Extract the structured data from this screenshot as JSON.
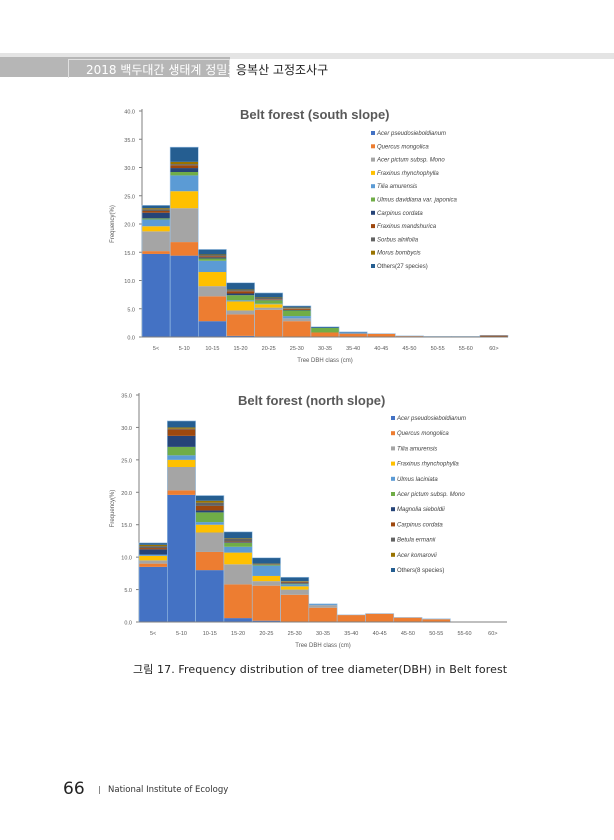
{
  "header": {
    "report_title": "2018 백두대간 생태계 정밀조사",
    "section_title": "응복산 고정조사구"
  },
  "caption": "그림 17. Frequency distribution of tree diameter(DBH) in Belt forest",
  "footer": {
    "page_number": "66",
    "institution": "National Institute of Ecology"
  },
  "chart_data": [
    {
      "type": "bar",
      "stacked": true,
      "title": "Belt forest (south slope)",
      "xlabel": "Tree DBH class (cm)",
      "ylabel": "Frequency(%)",
      "ylim": [
        0,
        40
      ],
      "yticks": [
        "0.0",
        "5.0",
        "10.0",
        "15.0",
        "20.0",
        "25.0",
        "30.0",
        "35.0",
        "40.0"
      ],
      "legend_position": "right",
      "categories": [
        "5<",
        "5-10",
        "10-15",
        "15-20",
        "20-25",
        "25-30",
        "30-35",
        "35-40",
        "40-45",
        "45-50",
        "50-55",
        "55-60",
        "60>"
      ],
      "series": [
        {
          "name": "Acer pseudosieboldianum",
          "color": "#4472c4",
          "values": [
            14.7,
            14.4,
            2.8,
            0.2,
            0.1,
            0,
            0,
            0,
            0,
            0,
            0,
            0,
            0
          ]
        },
        {
          "name": "Quercus mongolica",
          "color": "#ed7d31",
          "values": [
            0.5,
            2.4,
            4.4,
            3.8,
            4.7,
            2.8,
            0.8,
            0.6,
            0.6,
            0.2,
            0,
            0,
            0
          ]
        },
        {
          "name": "Acer pictum subsp. Mono",
          "color": "#a5a5a5",
          "values": [
            3.5,
            6.0,
            1.8,
            0.7,
            0.4,
            0.5,
            0,
            0,
            0,
            0,
            0.1,
            0.1,
            0
          ]
        },
        {
          "name": "Fraxinus rhynchophylla",
          "color": "#ffc000",
          "values": [
            0.9,
            3.0,
            2.5,
            1.6,
            0.6,
            0,
            0,
            0,
            0,
            0,
            0,
            0,
            0
          ]
        },
        {
          "name": "Tilia amurensis",
          "color": "#5b9bd5",
          "values": [
            1.2,
            2.8,
            2.0,
            0.2,
            0.1,
            0.4,
            0,
            0.2,
            0,
            0,
            0,
            0,
            0
          ]
        },
        {
          "name": "Ulmus davidiana var. japonica",
          "color": "#70ad47",
          "values": [
            0.2,
            0.6,
            0.4,
            0.9,
            0.6,
            1.0,
            0.8,
            0,
            0,
            0,
            0,
            0,
            0
          ]
        },
        {
          "name": "Carpinus cordata",
          "color": "#264478",
          "values": [
            1.0,
            0.7,
            0.2,
            0.3,
            0.1,
            0.1,
            0,
            0,
            0,
            0,
            0,
            0,
            0
          ]
        },
        {
          "name": "Fraxinus mandshurica",
          "color": "#9e480e",
          "values": [
            0.3,
            0.5,
            0.2,
            0.4,
            0.1,
            0.2,
            0,
            0,
            0,
            0,
            0,
            0,
            0.3
          ]
        },
        {
          "name": "Sorbus alnifolia",
          "color": "#636363",
          "values": [
            0.3,
            0.2,
            0.2,
            0.2,
            0.2,
            0.1,
            0,
            0,
            0,
            0,
            0,
            0,
            0
          ]
        },
        {
          "name": "Morus bombycis",
          "color": "#997300",
          "values": [
            0.2,
            0.4,
            0.1,
            0.1,
            0.1,
            0.1,
            0,
            0,
            0,
            0,
            0,
            0,
            0
          ]
        },
        {
          "name": "Others(27 species)",
          "color": "#255e91",
          "values": [
            0.5,
            2.6,
            0.9,
            1.2,
            0.8,
            0.3,
            0.2,
            0.1,
            0,
            0,
            0,
            0,
            0
          ]
        }
      ]
    },
    {
      "type": "bar",
      "stacked": true,
      "title": "Belt forest (north slope)",
      "xlabel": "Tree DBH class (cm)",
      "ylabel": "Frequency(%)",
      "ylim": [
        0,
        35
      ],
      "yticks": [
        "0.0",
        "5.0",
        "10.0",
        "15.0",
        "20.0",
        "25.0",
        "30.0",
        "35.0"
      ],
      "legend_position": "right",
      "categories": [
        "5<",
        "5-10",
        "10-15",
        "15-20",
        "20-25",
        "25-30",
        "30-35",
        "35-40",
        "40-45",
        "45-50",
        "50-55",
        "55-60",
        "60>"
      ],
      "series": [
        {
          "name": "Acer pseudosieboldianum",
          "color": "#4472c4",
          "values": [
            8.5,
            19.6,
            8.0,
            0.6,
            0.2,
            0,
            0,
            0,
            0,
            0,
            0,
            0,
            0
          ]
        },
        {
          "name": "Quercus mongolica",
          "color": "#ed7d31",
          "values": [
            0.5,
            0.7,
            2.8,
            5.2,
            5.4,
            4.2,
            2.2,
            1.1,
            1.3,
            0.7,
            0.4,
            0,
            0
          ]
        },
        {
          "name": "Tilia amurensis",
          "color": "#a5a5a5",
          "values": [
            0.5,
            3.6,
            3.0,
            3.1,
            0.7,
            0.8,
            0.4,
            0,
            0,
            0,
            0.1,
            0,
            0
          ]
        },
        {
          "name": "Fraxinus rhynchophylla",
          "color": "#ffc000",
          "values": [
            0.7,
            1.1,
            1.2,
            1.8,
            0.8,
            0.5,
            0,
            0,
            0,
            0,
            0,
            0,
            0
          ]
        },
        {
          "name": "Ulmus laciniata",
          "color": "#5b9bd5",
          "values": [
            0.2,
            0.7,
            0.4,
            0.9,
            1.6,
            0.3,
            0.2,
            0,
            0,
            0,
            0,
            0,
            0
          ]
        },
        {
          "name": "Acer pictum subsp. Mono",
          "color": "#70ad47",
          "values": [
            0,
            1.3,
            1.5,
            0.6,
            0.1,
            0.1,
            0,
            0,
            0,
            0,
            0,
            0,
            0
          ]
        },
        {
          "name": "Magnolia sieboldii",
          "color": "#264478",
          "values": [
            0.8,
            1.7,
            0.3,
            0.1,
            0,
            0.1,
            0,
            0,
            0,
            0,
            0,
            0,
            0
          ]
        },
        {
          "name": "Carpinus cordata",
          "color": "#9e480e",
          "values": [
            0.2,
            1.0,
            0.7,
            0.1,
            0,
            0.1,
            0,
            0,
            0,
            0,
            0,
            0,
            0
          ]
        },
        {
          "name": "Betula ermanii",
          "color": "#636363",
          "values": [
            0.3,
            0.1,
            0.5,
            0.4,
            0.1,
            0.1,
            0,
            0,
            0,
            0,
            0,
            0,
            0
          ]
        },
        {
          "name": "Acer komarovii",
          "color": "#997300",
          "values": [
            0.2,
            0.2,
            0.3,
            0.1,
            0.1,
            0.1,
            0,
            0,
            0,
            0,
            0,
            0,
            0
          ]
        },
        {
          "name": "Others(8 species)",
          "color": "#255e91",
          "values": [
            0.3,
            1.0,
            0.8,
            1.0,
            0.9,
            0.6,
            0,
            0,
            0,
            0,
            0,
            0,
            0
          ]
        }
      ]
    }
  ]
}
